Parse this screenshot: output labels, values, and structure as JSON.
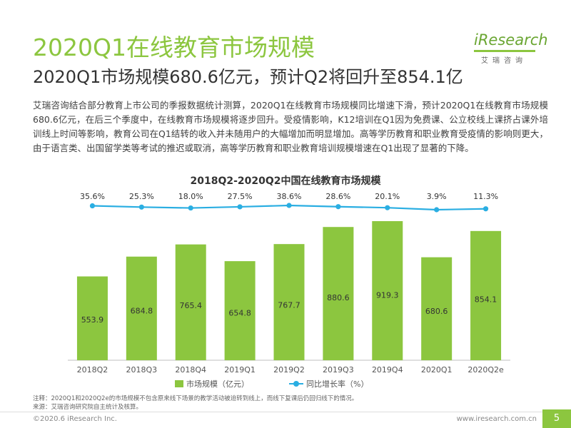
{
  "header": {
    "title": "2020Q1在线教育市场规模",
    "subtitle": "2020Q1市场规模680.6亿元，预计Q2将回升至854.1亿"
  },
  "logo": {
    "name": "iResearch",
    "cn": "艾瑞咨询"
  },
  "body_text": "艾瑞咨询结合部分教育上市公司的季报数据统计测算，2020Q1在线教育市场规模同比增速下滑，预计2020Q1在线教育市场规模680.6亿元，在后三个季度中，在线教育市场规模将逐步回升。受疫情影响，K12培训在Q1因为免费课、公立校线上课挤占课外培训线上时间等影响，教育公司在Q1结转的收入并未随用户的大幅增加而明显增加。高等学历教育和职业教育受疫情的影响则更大，由于语言类、出国留学类等考试的推迟或取消，高等学历教育和职业教育培训规模增速在Q1出现了显著的下降。",
  "colors": {
    "accent": "#8cc63f",
    "line": "#2aaee2"
  },
  "chart_data": {
    "type": "bar",
    "title": "2018Q2-2020Q2中国在线教育市场规模",
    "categories": [
      "2018Q2",
      "2018Q3",
      "2018Q4",
      "2019Q1",
      "2019Q2",
      "2019Q3",
      "2019Q4",
      "2020Q1",
      "2020Q2e"
    ],
    "series": [
      {
        "name": "市场规模（亿元）",
        "type": "bar",
        "values": [
          553.9,
          684.8,
          765.4,
          654.8,
          767.7,
          880.6,
          919.3,
          680.6,
          854.1
        ],
        "labels": [
          "553.9",
          "684.8",
          "765.4",
          "654.8",
          "767.7",
          "880.6",
          "919.3",
          "680.6",
          "854.1"
        ]
      },
      {
        "name": "同比增长率（%）",
        "type": "line",
        "values": [
          35.6,
          25.3,
          18.0,
          27.5,
          38.6,
          28.6,
          20.1,
          3.9,
          11.3
        ],
        "labels": [
          "35.6%",
          "25.3%",
          "18.0%",
          "27.5%",
          "38.6%",
          "28.6%",
          "20.1%",
          "3.9%",
          "11.3%"
        ]
      }
    ],
    "legend_position": "bottom",
    "grid": false
  },
  "notes": {
    "line1": "注释：2020Q1和2020Q2e的市场规模不包含原来线下场景的教学活动被迫转到线上，而线下复课后仍回归线下的情况。",
    "line2": "来源：艾瑞咨询研究院自主统计及核算。"
  },
  "footer": {
    "copyright": "©2020.6 iResearch Inc.",
    "website": "www.iresearch.com.cn",
    "page": "5"
  }
}
